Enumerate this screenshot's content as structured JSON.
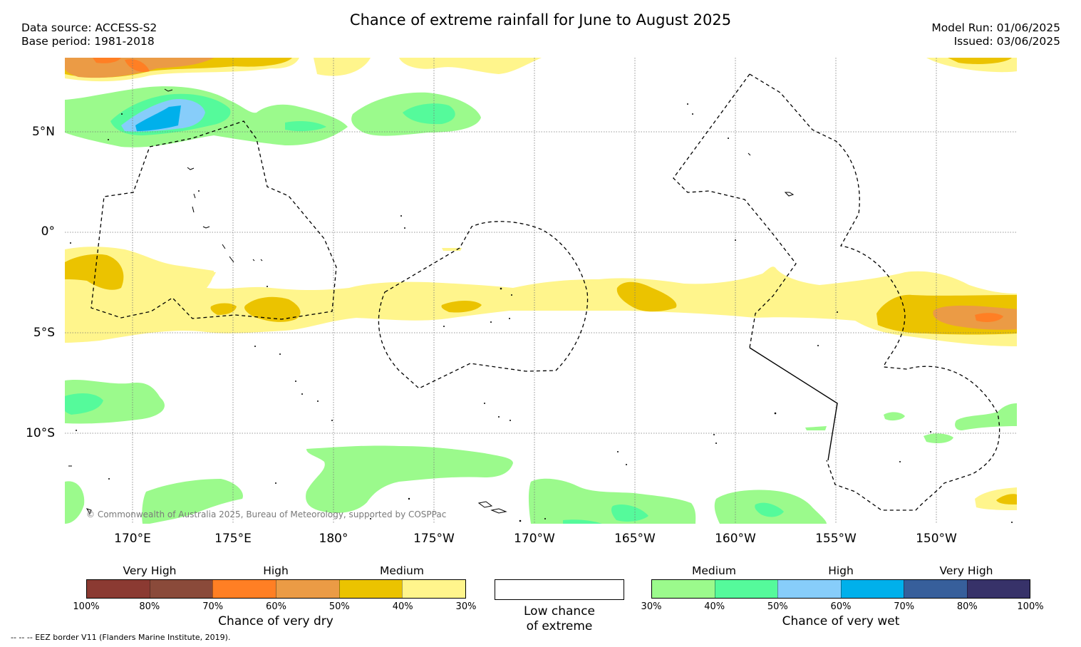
{
  "title": "Chance of extreme rainfall for June to August 2025",
  "meta_left": {
    "source": "Data source: ACCESS-S2",
    "base": "Base period: 1981-2018"
  },
  "meta_right": {
    "model_run": "Model Run: 01/06/2025",
    "issued": "Issued: 03/06/2025"
  },
  "map": {
    "lat_labels": [
      "5°N",
      "0°",
      "5°S",
      "10°S"
    ],
    "lon_labels": [
      "170°E",
      "175°E",
      "180°",
      "175°W",
      "170°W",
      "165°W",
      "160°W",
      "155°W",
      "150°W"
    ],
    "copyright": "© Commonwealth of Australia 2025, Bureau of Meteorology, supported by COSPPac"
  },
  "legend": {
    "dry": {
      "headings": [
        "Very High",
        "High",
        "Medium"
      ],
      "colors": [
        "#8b3a32",
        "#8a4a3a",
        "#ff7f24",
        "#eb9b45",
        "#ebc300",
        "#fff58c"
      ],
      "ticks": [
        "100%",
        "80%",
        "70%",
        "60%",
        "50%",
        "40%",
        "30%"
      ],
      "label": "Chance of very dry"
    },
    "low": {
      "line1": "Low chance",
      "line2": "of extreme"
    },
    "wet": {
      "headings": [
        "Medium",
        "High",
        "Very High"
      ],
      "colors": [
        "#9bfa8c",
        "#55fa9b",
        "#87cdfa",
        "#00b0eb",
        "#375f9b",
        "#373269"
      ],
      "ticks": [
        "30%",
        "40%",
        "50%",
        "60%",
        "70%",
        "80%",
        "100%"
      ],
      "label": "Chance of very wet"
    }
  },
  "eez_note": "-- -- -- EEZ border V11 (Flanders Marine Institute, 2019)."
}
